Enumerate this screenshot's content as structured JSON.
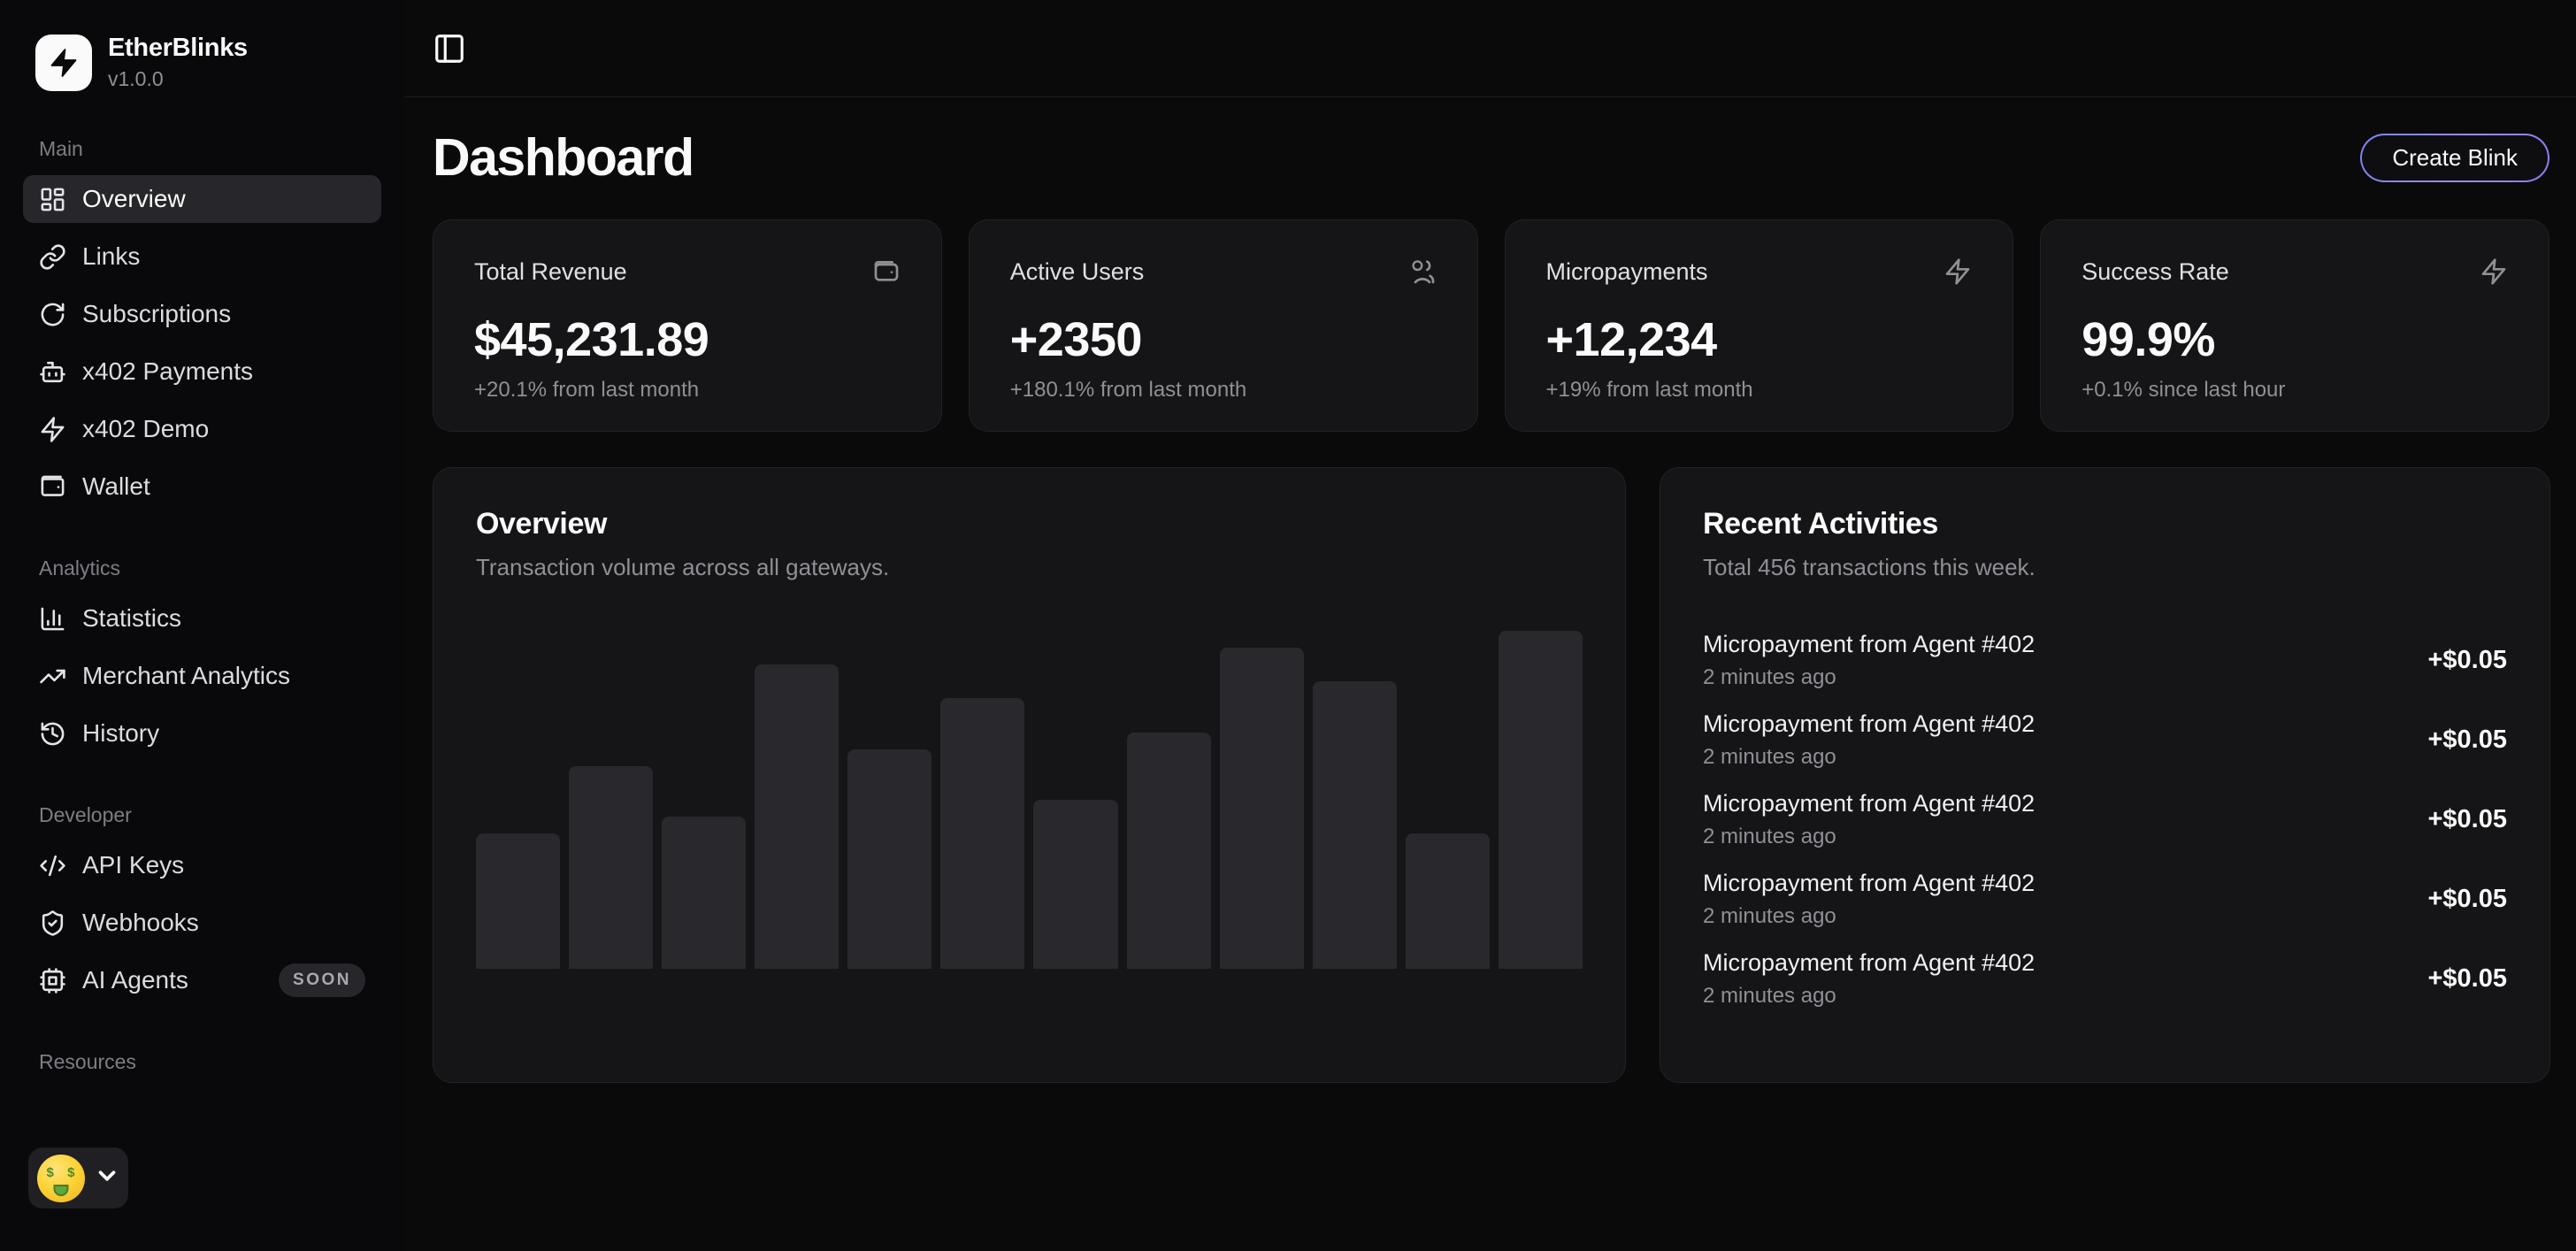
{
  "app": {
    "name": "EtherBlinks",
    "version": "v1.0.0",
    "logo_icon": "lightning-bolt-icon"
  },
  "topbar": {
    "toggle_icon": "panel-left-icon"
  },
  "sidebar": {
    "sections": [
      {
        "label": "Main",
        "items": [
          {
            "label": "Overview",
            "icon": "dashboard-icon",
            "active": true
          },
          {
            "label": "Links",
            "icon": "link-icon",
            "active": false
          },
          {
            "label": "Subscriptions",
            "icon": "refresh-icon",
            "active": false
          },
          {
            "label": "x402 Payments",
            "icon": "bot-icon",
            "active": false
          },
          {
            "label": "x402 Demo",
            "icon": "zap-icon",
            "active": false
          },
          {
            "label": "Wallet",
            "icon": "wallet-icon",
            "active": false
          }
        ]
      },
      {
        "label": "Analytics",
        "items": [
          {
            "label": "Statistics",
            "icon": "bar-chart-icon",
            "active": false
          },
          {
            "label": "Merchant Analytics",
            "icon": "trending-up-icon",
            "active": false
          },
          {
            "label": "History",
            "icon": "history-icon",
            "active": false
          }
        ]
      },
      {
        "label": "Developer",
        "items": [
          {
            "label": "API Keys",
            "icon": "code-icon",
            "active": false
          },
          {
            "label": "Webhooks",
            "icon": "shield-check-icon",
            "active": false
          },
          {
            "label": "AI Agents",
            "icon": "cpu-icon",
            "active": false,
            "badge": "SOON"
          }
        ]
      },
      {
        "label": "Resources",
        "items": []
      }
    ],
    "user_menu": {
      "avatar": "money-mouth-face-emoji",
      "chevron": "chevron-down-icon"
    }
  },
  "header": {
    "title": "Dashboard",
    "create_button_label": "Create Blink"
  },
  "stats": [
    {
      "title": "Total Revenue",
      "icon": "wallet-minimal-icon",
      "value": "$45,231.89",
      "change": "+20.1% from last month"
    },
    {
      "title": "Active Users",
      "icon": "users-icon",
      "value": "+2350",
      "change": "+180.1% from last month"
    },
    {
      "title": "Micropayments",
      "icon": "zap-icon",
      "value": "+12,234",
      "change": "+19% from last month"
    },
    {
      "title": "Success Rate",
      "icon": "zap-icon",
      "value": "99.9%",
      "change": "+0.1% since last hour"
    }
  ],
  "overview_card": {
    "title": "Overview",
    "subtitle": "Transaction volume across all gateways."
  },
  "chart_data": {
    "type": "bar",
    "values": [
      40,
      60,
      45,
      90,
      65,
      80,
      50,
      70,
      95,
      85,
      40,
      100
    ],
    "value_unit": "percent-of-max",
    "title": "Overview",
    "subtitle": "Transaction volume across all gateways.",
    "xlabel": "",
    "ylabel": "",
    "axes_visible": false,
    "grid": false,
    "legend": "none",
    "bar_color": "#29292d"
  },
  "activities": {
    "title": "Recent Activities",
    "subtitle": "Total 456 transactions this week.",
    "items": [
      {
        "title": "Micropayment from Agent #402",
        "time": "2 minutes ago",
        "amount": "+$0.05"
      },
      {
        "title": "Micropayment from Agent #402",
        "time": "2 minutes ago",
        "amount": "+$0.05"
      },
      {
        "title": "Micropayment from Agent #402",
        "time": "2 minutes ago",
        "amount": "+$0.05"
      },
      {
        "title": "Micropayment from Agent #402",
        "time": "2 minutes ago",
        "amount": "+$0.05"
      },
      {
        "title": "Micropayment from Agent #402",
        "time": "2 minutes ago",
        "amount": "+$0.05"
      }
    ]
  },
  "colors": {
    "page_bg": "#0a0a0b",
    "card_bg": "#151517",
    "card_border": "#222226",
    "active_item_bg": "#26262b",
    "muted_text": "#8f8f96",
    "accent_gradient_start": "#7c83f0",
    "accent_gradient_end": "#8f7bf2",
    "bar_fill": "#29292d",
    "avatar_yellow": "#fcd335"
  }
}
